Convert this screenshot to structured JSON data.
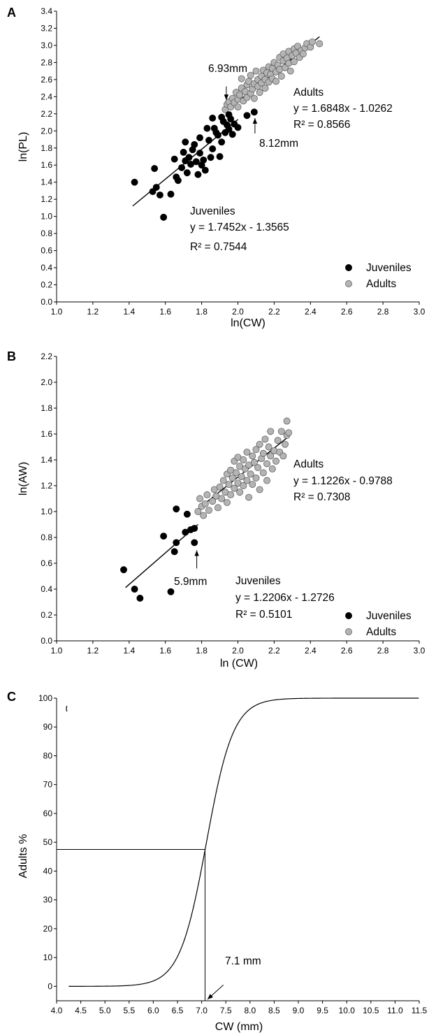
{
  "chart_data": [
    {
      "panel": "A",
      "type": "scatter",
      "xlabel": "ln(CW)",
      "ylabel": "ln(PL)",
      "xlim": [
        1.0,
        3.0
      ],
      "ylim": [
        0.0,
        3.4
      ],
      "xticks": [
        "1.0",
        "1.2",
        "1.4",
        "1.6",
        "1.8",
        "2.0",
        "2.2",
        "2.4",
        "2.6",
        "2.8",
        "3.0"
      ],
      "yticks": [
        "0.0",
        "0.2",
        "0.4",
        "0.6",
        "0.8",
        "1.0",
        "1.2",
        "1.4",
        "1.6",
        "1.8",
        "2.0",
        "2.2",
        "2.4",
        "2.6",
        "2.8",
        "3.0",
        "3.2",
        "3.4"
      ],
      "legend": {
        "position": "bottom-right",
        "entries": [
          "Juveniles",
          "Adults"
        ]
      },
      "colors": {
        "Juveniles": "#000000",
        "Adults": "#b4b4b4",
        "edge": "#555555",
        "line": "#000000"
      },
      "series": [
        {
          "name": "Juveniles",
          "points": [
            [
              1.43,
              1.4
            ],
            [
              1.53,
              1.29
            ],
            [
              1.54,
              1.56
            ],
            [
              1.55,
              1.34
            ],
            [
              1.57,
              1.25
            ],
            [
              1.59,
              0.99
            ],
            [
              1.63,
              1.26
            ],
            [
              1.65,
              1.67
            ],
            [
              1.66,
              1.46
            ],
            [
              1.67,
              1.42
            ],
            [
              1.69,
              1.57
            ],
            [
              1.7,
              1.75
            ],
            [
              1.71,
              1.87
            ],
            [
              1.71,
              1.65
            ],
            [
              1.72,
              1.51
            ],
            [
              1.73,
              1.69
            ],
            [
              1.74,
              1.61
            ],
            [
              1.75,
              1.78
            ],
            [
              1.76,
              1.84
            ],
            [
              1.77,
              1.64
            ],
            [
              1.78,
              1.49
            ],
            [
              1.79,
              1.74
            ],
            [
              1.79,
              1.92
            ],
            [
              1.8,
              1.6
            ],
            [
              1.81,
              1.66
            ],
            [
              1.82,
              1.54
            ],
            [
              1.83,
              2.03
            ],
            [
              1.84,
              1.89
            ],
            [
              1.85,
              1.69
            ],
            [
              1.86,
              2.15
            ],
            [
              1.86,
              1.79
            ],
            [
              1.87,
              2.03
            ],
            [
              1.88,
              1.98
            ],
            [
              1.89,
              1.95
            ],
            [
              1.9,
              1.7
            ],
            [
              1.91,
              2.16
            ],
            [
              1.91,
              1.87
            ],
            [
              1.92,
              2.11
            ],
            [
              1.93,
              1.98
            ],
            [
              1.94,
              2.07
            ],
            [
              1.95,
              2.02
            ],
            [
              1.95,
              2.19
            ],
            [
              1.96,
              2.14
            ],
            [
              1.97,
              1.96
            ],
            [
              1.98,
              2.08
            ],
            [
              2.0,
              2.04
            ],
            [
              2.05,
              2.18
            ],
            [
              2.09,
              2.22
            ]
          ],
          "trendline": {
            "equation": "y = 1.7452x - 1.3565",
            "r2": "R² = 0.7544",
            "slope": 1.7452,
            "intercept": -1.3565,
            "x_range": [
              1.42,
              2.0
            ]
          }
        },
        {
          "name": "Adults",
          "points": [
            [
              1.93,
              2.25
            ],
            [
              1.94,
              2.31
            ],
            [
              1.95,
              2.34
            ],
            [
              1.96,
              2.28
            ],
            [
              1.97,
              2.38
            ],
            [
              1.98,
              2.33
            ],
            [
              1.99,
              2.45
            ],
            [
              2.0,
              2.37
            ],
            [
              2.0,
              2.28
            ],
            [
              2.01,
              2.42
            ],
            [
              2.02,
              2.5
            ],
            [
              2.02,
              2.61
            ],
            [
              2.03,
              2.35
            ],
            [
              2.04,
              2.46
            ],
            [
              2.05,
              2.39
            ],
            [
              2.05,
              2.54
            ],
            [
              2.06,
              2.58
            ],
            [
              2.07,
              2.44
            ],
            [
              2.07,
              2.65
            ],
            [
              2.08,
              2.49
            ],
            [
              2.09,
              2.55
            ],
            [
              2.09,
              2.38
            ],
            [
              2.1,
              2.7
            ],
            [
              2.11,
              2.52
            ],
            [
              2.11,
              2.6
            ],
            [
              2.12,
              2.45
            ],
            [
              2.13,
              2.64
            ],
            [
              2.13,
              2.56
            ],
            [
              2.14,
              2.71
            ],
            [
              2.15,
              2.6
            ],
            [
              2.15,
              2.5
            ],
            [
              2.16,
              2.68
            ],
            [
              2.17,
              2.75
            ],
            [
              2.17,
              2.57
            ],
            [
              2.18,
              2.66
            ],
            [
              2.19,
              2.73
            ],
            [
              2.19,
              2.61
            ],
            [
              2.2,
              2.8
            ],
            [
              2.21,
              2.69
            ],
            [
              2.21,
              2.58
            ],
            [
              2.22,
              2.77
            ],
            [
              2.23,
              2.86
            ],
            [
              2.23,
              2.72
            ],
            [
              2.24,
              2.64
            ],
            [
              2.25,
              2.82
            ],
            [
              2.25,
              2.9
            ],
            [
              2.26,
              2.74
            ],
            [
              2.27,
              2.85
            ],
            [
              2.28,
              2.79
            ],
            [
              2.28,
              2.93
            ],
            [
              2.29,
              2.7
            ],
            [
              2.3,
              2.88
            ],
            [
              2.31,
              2.96
            ],
            [
              2.31,
              2.81
            ],
            [
              2.32,
              2.91
            ],
            [
              2.33,
              2.99
            ],
            [
              2.34,
              2.86
            ],
            [
              2.35,
              2.94
            ],
            [
              2.36,
              2.9
            ],
            [
              2.37,
              2.97
            ],
            [
              2.38,
              3.02
            ],
            [
              2.4,
              2.98
            ],
            [
              2.41,
              3.04
            ],
            [
              2.45,
              3.02
            ]
          ],
          "trendline": {
            "equation": "y = 1.6848x - 1.0262",
            "r2": "R² = 0.8566",
            "slope": 1.6848,
            "intercept": -1.0262,
            "x_range": [
              1.94,
              2.45
            ]
          }
        }
      ],
      "annotations": [
        {
          "text": "6.93mm",
          "x": 1.936,
          "y": 2.61,
          "arrow_from": [
            1.936,
            2.52
          ],
          "arrow_to": [
            1.936,
            2.36
          ]
        },
        {
          "text": "8.12mm",
          "x": 2.1,
          "y": 1.72,
          "arrow_from": [
            2.094,
            1.97
          ],
          "arrow_to": [
            2.094,
            2.15
          ]
        }
      ],
      "labels": {
        "adults_title": "Adults",
        "juveniles_title": "Juveniles"
      }
    },
    {
      "panel": "B",
      "type": "scatter",
      "xlabel": "ln (CW)",
      "ylabel": "ln(AW)",
      "xlim": [
        1.0,
        3.0
      ],
      "ylim": [
        0.0,
        2.2
      ],
      "xticks": [
        "1.0",
        "1.2",
        "1.4",
        "1.6",
        "1.8",
        "2.0",
        "2.2",
        "2.4",
        "2.6",
        "2.8",
        "3.0"
      ],
      "yticks": [
        "0.0",
        "0.2",
        "0.4",
        "0.6",
        "0.8",
        "1.0",
        "1.2",
        "1.4",
        "1.6",
        "1.8",
        "2.0",
        "2.2"
      ],
      "legend": {
        "position": "bottom-right",
        "entries": [
          "Juveniles",
          "Adults"
        ]
      },
      "colors": {
        "Juveniles": "#000000",
        "Adults": "#b4b4b4",
        "edge": "#555555",
        "line": "#000000"
      },
      "series": [
        {
          "name": "Juveniles",
          "points": [
            [
              1.37,
              0.55
            ],
            [
              1.43,
              0.4
            ],
            [
              1.46,
              0.33
            ],
            [
              1.59,
              0.81
            ],
            [
              1.63,
              0.38
            ],
            [
              1.65,
              0.69
            ],
            [
              1.66,
              1.02
            ],
            [
              1.66,
              0.76
            ],
            [
              1.71,
              0.84
            ],
            [
              1.72,
              0.98
            ],
            [
              1.74,
              0.86
            ],
            [
              1.76,
              0.87
            ],
            [
              1.76,
              0.76
            ]
          ],
          "trendline": {
            "equation": "y = 1.2206x - 1.2726",
            "r2": "R² = 0.5101",
            "slope": 1.2206,
            "intercept": -1.2726,
            "x_range": [
              1.38,
              1.78
            ]
          }
        },
        {
          "name": "Adults",
          "points": [
            [
              1.78,
              1.0
            ],
            [
              1.79,
              1.1
            ],
            [
              1.8,
              1.04
            ],
            [
              1.81,
              0.97
            ],
            [
              1.82,
              1.06
            ],
            [
              1.83,
              1.13
            ],
            [
              1.84,
              1.01
            ],
            [
              1.86,
              1.08
            ],
            [
              1.87,
              1.17
            ],
            [
              1.88,
              1.12
            ],
            [
              1.89,
              1.03
            ],
            [
              1.9,
              1.19
            ],
            [
              1.91,
              1.1
            ],
            [
              1.92,
              1.24
            ],
            [
              1.93,
              1.15
            ],
            [
              1.94,
              1.29
            ],
            [
              1.94,
              1.07
            ],
            [
              1.95,
              1.21
            ],
            [
              1.96,
              1.32
            ],
            [
              1.96,
              1.13
            ],
            [
              1.97,
              1.26
            ],
            [
              1.98,
              1.18
            ],
            [
              1.98,
              1.39
            ],
            [
              1.99,
              1.3
            ],
            [
              2.0,
              1.22
            ],
            [
              2.0,
              1.42
            ],
            [
              2.01,
              1.35
            ],
            [
              2.01,
              1.15
            ],
            [
              2.02,
              1.27
            ],
            [
              2.03,
              1.4
            ],
            [
              2.03,
              1.2
            ],
            [
              2.04,
              1.33
            ],
            [
              2.05,
              1.46
            ],
            [
              2.05,
              1.24
            ],
            [
              2.06,
              1.36
            ],
            [
              2.06,
              1.11
            ],
            [
              2.07,
              1.29
            ],
            [
              2.08,
              1.43
            ],
            [
              2.08,
              1.21
            ],
            [
              2.09,
              1.38
            ],
            [
              2.1,
              1.48
            ],
            [
              2.1,
              1.26
            ],
            [
              2.11,
              1.34
            ],
            [
              2.12,
              1.52
            ],
            [
              2.12,
              1.17
            ],
            [
              2.13,
              1.41
            ],
            [
              2.14,
              1.3
            ],
            [
              2.14,
              1.45
            ],
            [
              2.15,
              1.56
            ],
            [
              2.16,
              1.37
            ],
            [
              2.16,
              1.24
            ],
            [
              2.17,
              1.5
            ],
            [
              2.18,
              1.43
            ],
            [
              2.18,
              1.62
            ],
            [
              2.19,
              1.33
            ],
            [
              2.2,
              1.47
            ],
            [
              2.21,
              1.39
            ],
            [
              2.22,
              1.55
            ],
            [
              2.23,
              1.46
            ],
            [
              2.24,
              1.62
            ],
            [
              2.25,
              1.43
            ],
            [
              2.26,
              1.52
            ],
            [
              2.27,
              1.59
            ],
            [
              2.27,
              1.7
            ],
            [
              2.28,
              1.61
            ]
          ],
          "trendline": {
            "equation": "y = 1.1226x - 0.9788",
            "r2": "R² = 0.7308",
            "slope": 1.1226,
            "intercept": -0.9788,
            "x_range": [
              1.77,
              2.28
            ]
          }
        }
      ],
      "annotations": [
        {
          "text": "5.9mm",
          "x": 1.756,
          "y": 0.45,
          "arrow_from": [
            1.773,
            0.56
          ],
          "arrow_to": [
            1.773,
            0.7
          ]
        }
      ],
      "labels": {
        "adults_title": "Adults",
        "juveniles_title": "Juveniles"
      }
    },
    {
      "panel": "C",
      "type": "line",
      "xlabel": "CW (mm)",
      "ylabel": "Adults %",
      "xlim": [
        4.0,
        11.5
      ],
      "ylim": [
        -5,
        100
      ],
      "xticks": [
        "4.0",
        "4.5",
        "5.0",
        "5.5",
        "6.0",
        "6.5",
        "7.0",
        "7.5",
        "8.0",
        "8.5",
        "9.0",
        "9.5",
        "10.0",
        "10.5",
        "11.0",
        "11.5"
      ],
      "yticks": [
        "0",
        "10",
        "20",
        "30",
        "40",
        "50",
        "60",
        "70",
        "80",
        "90",
        "100"
      ],
      "colors": {
        "line": "#000000"
      },
      "series": [
        {
          "name": "logistic",
          "function": "logistic",
          "midpoint": 7.1,
          "steepness": 3.6,
          "x_range": [
            4.25,
            11.5
          ]
        }
      ],
      "reference": {
        "x": 7.07,
        "y": 47.5
      },
      "annotations": [
        {
          "text": "7.1 mm",
          "x": 7.25,
          "y": 7.5,
          "arrow_from": [
            7.45,
            0.5
          ],
          "arrow_to": [
            7.12,
            -4.5
          ]
        }
      ]
    }
  ],
  "panel_letters": {
    "a": "A",
    "b": "B",
    "c": "C"
  }
}
